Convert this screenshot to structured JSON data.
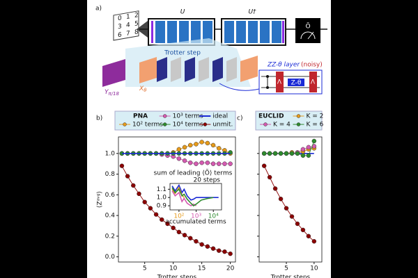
{
  "diagram": {
    "label_a": "a)",
    "grid": [
      "0",
      "1",
      "2",
      "3",
      "4",
      "5",
      "6",
      "7",
      "8"
    ],
    "u": "U",
    "u_dagger": "U†",
    "observable": "Õ",
    "trotter_step": "Trotter step",
    "zz_layer": "ZZ-θ layer",
    "noisy": "(noisy)",
    "y_gate": "Y",
    "y_gate_sub": "π/18",
    "x_gate": "X",
    "x_gate_sub": "θ",
    "z_gate": "Z-θ",
    "lambda": "Λ"
  },
  "chart_data": [
    {
      "type": "line",
      "label": "b)",
      "legend_title": "PNA",
      "xlabel": "Trotter steps",
      "ylabel": "⟨Zᵃᵛᵍ⟩",
      "x": [
        1,
        2,
        3,
        4,
        5,
        6,
        7,
        8,
        9,
        10,
        11,
        12,
        13,
        14,
        15,
        16,
        17,
        18,
        19,
        20
      ],
      "xlim": [
        0.4,
        20.9
      ],
      "xticks": [
        5,
        10,
        15,
        20
      ],
      "ylim": [
        -0.05,
        1.16
      ],
      "yticks": [
        {
          "value": 0,
          "label": "0.0"
        },
        0.2,
        0.4,
        0.6,
        0.8,
        {
          "value": 1,
          "label": "1.0"
        }
      ],
      "series": [
        {
          "name": "10² terms",
          "color": "#e69a1a",
          "values": [
            1.0,
            1.0,
            1.0,
            1.0,
            1.0,
            1.0,
            1.0,
            1.0,
            1.0,
            1.01,
            1.04,
            1.06,
            1.08,
            1.09,
            1.11,
            1.1,
            1.08,
            1.05,
            1.03,
            1.0
          ]
        },
        {
          "name": "10³ terms",
          "color": "#d45ab0",
          "values": [
            1.0,
            1.0,
            1.0,
            1.0,
            1.0,
            1.0,
            1.0,
            0.99,
            0.98,
            0.97,
            0.95,
            0.93,
            0.91,
            0.9,
            0.91,
            0.91,
            0.9,
            0.9,
            0.9,
            0.9
          ]
        },
        {
          "name": "10⁴ terms",
          "color": "#2e8b2e",
          "values": [
            1.0,
            1.0,
            1.0,
            1.0,
            1.0,
            1.0,
            1.0,
            1.0,
            1.0,
            1.0,
            1.0,
            1.0,
            1.0,
            1.0,
            1.0,
            1.0,
            1.0,
            1.0,
            1.0,
            1.01
          ]
        },
        {
          "name": "ideal",
          "color": "#1a2ad6",
          "marker": false,
          "values": [
            1.0,
            1.0,
            1.0,
            1.0,
            1.0,
            1.0,
            1.0,
            1.0,
            1.0,
            1.0,
            1.0,
            1.0,
            1.0,
            1.0,
            1.0,
            1.0,
            1.0,
            1.0,
            1.0,
            1.0
          ]
        },
        {
          "name": "unmit.",
          "color": "#8b0000",
          "values": [
            0.88,
            0.78,
            0.69,
            0.61,
            0.53,
            0.47,
            0.41,
            0.36,
            0.32,
            0.28,
            0.24,
            0.21,
            0.18,
            0.15,
            0.12,
            0.1,
            0.08,
            0.06,
            0.05,
            0.03
          ]
        }
      ]
    },
    {
      "type": "line",
      "title": "sum of leading ⟨Õ⟩ terms",
      "xlabel": "accumulated terms",
      "annotation": "20 steps",
      "xlog": true,
      "x": [
        40,
        60,
        100,
        150,
        200,
        300,
        500,
        700,
        1000,
        2000,
        5000,
        10000,
        20000
      ],
      "xlim": [
        30,
        30000
      ],
      "xticks": [
        {
          "value": 100,
          "label": "10²",
          "color": "#e69a1a"
        },
        {
          "value": 1000,
          "label": "10³",
          "color": "#d45ab0"
        },
        {
          "value": 10000,
          "label": "10⁴",
          "color": "#2e8b2e"
        }
      ],
      "ylim": [
        0.85,
        1.17
      ],
      "yticks": [
        0.9,
        {
          "value": 1,
          "label": "1.0"
        },
        1.1
      ],
      "series": [
        {
          "color": "#1a2ad6",
          "marker": false,
          "values": [
            1.14,
            1.08,
            1.15,
            1.06,
            1.1,
            1.02,
            0.97,
            0.98,
            1.0,
            1.0,
            1.0,
            1.0,
            1.0
          ]
        },
        {
          "color": "#e69a1a",
          "marker": false,
          "values": [
            1.1,
            1.05,
            1.12,
            1.03,
            1.0,
            null,
            null,
            null,
            null,
            null,
            null,
            null,
            null
          ]
        },
        {
          "color": "#d45ab0",
          "marker": false,
          "values": [
            1.08,
            1.02,
            1.06,
            0.95,
            0.99,
            0.93,
            0.9,
            0.92,
            0.9,
            null,
            null,
            null,
            null
          ]
        },
        {
          "color": "#2e8b2e",
          "marker": false,
          "values": [
            1.12,
            1.06,
            1.1,
            1.02,
            1.04,
            0.98,
            0.93,
            0.9,
            0.92,
            0.97,
            0.99,
            1.0,
            null
          ]
        }
      ]
    },
    {
      "type": "line",
      "label": "c)",
      "legend_title": "EUCLID",
      "xlabel": "Trotter steps",
      "show_ytick_labels": false,
      "x": [
        1,
        2,
        3,
        4,
        5,
        6,
        7,
        8,
        9,
        10
      ],
      "xlim": [
        0.1,
        11.4
      ],
      "xticks": [
        5,
        10
      ],
      "ylim": [
        -0.05,
        1.16
      ],
      "yticks": [
        0,
        0.2,
        0.4,
        0.6,
        0.8,
        1
      ],
      "series": [
        {
          "color": "#1a2ad6",
          "marker": false,
          "values": [
            1.0,
            1.0,
            1.0,
            1.0,
            1.0,
            1.0,
            1.0,
            1.0,
            1.0,
            1.0
          ]
        },
        {
          "color": "#8b0000",
          "values": [
            0.88,
            0.77,
            0.66,
            0.56,
            0.47,
            0.39,
            0.32,
            0.26,
            0.2,
            0.15
          ]
        },
        {
          "name": "K = 2",
          "color": "#e69a1a",
          "values": [
            1.0,
            1.0,
            1.0,
            1.0,
            1.0,
            1.01,
            1.0,
            1.02,
            1.04,
            1.05
          ]
        },
        {
          "name": "K = 4",
          "color": "#d45ab0",
          "values": [
            1.0,
            1.0,
            1.0,
            1.0,
            1.0,
            1.0,
            1.01,
            1.04,
            1.06,
            1.07
          ]
        },
        {
          "name": "K = 6",
          "color": "#2e8b2e",
          "values": [
            1.0,
            1.0,
            1.0,
            1.0,
            1.0,
            1.0,
            1.0,
            0.98,
            0.98,
            1.12
          ]
        }
      ]
    }
  ]
}
